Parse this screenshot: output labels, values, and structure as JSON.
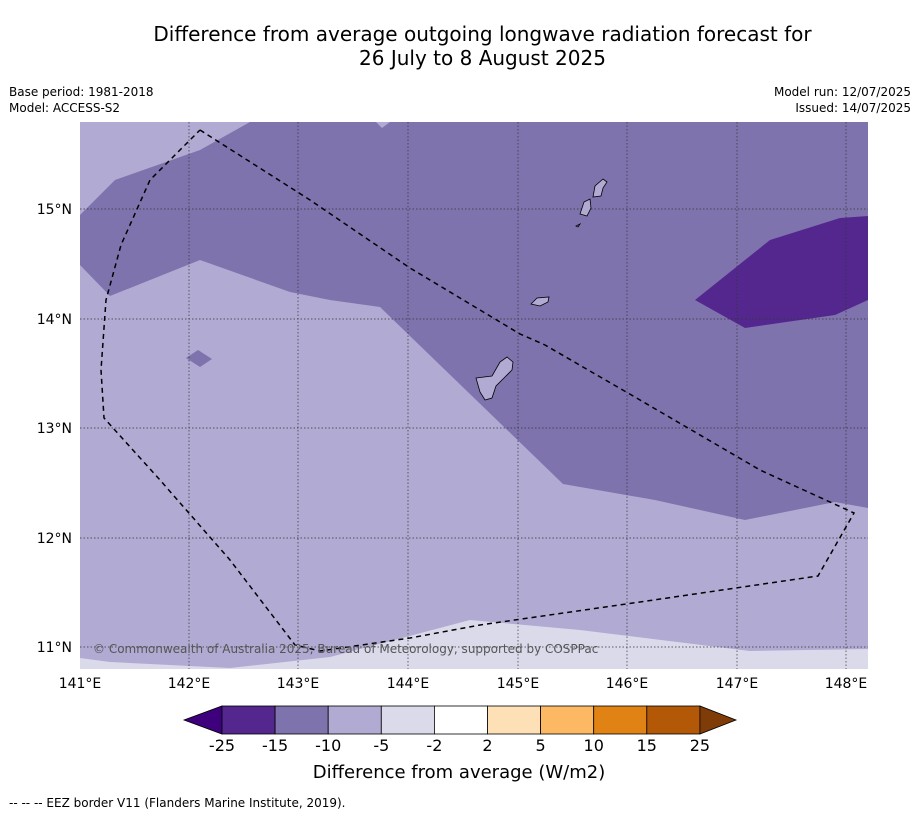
{
  "title_line1": "Difference from average outgoing longwave radiation forecast for",
  "title_line2": "26 July to 8 August 2025",
  "base_period": "Base period: 1981-2018",
  "model": "Model: ACCESS-S2",
  "model_run": "Model run: 12/07/2025",
  "issued": "Issued: 14/07/2025",
  "copyright": "© Commonwealth of Australia 2025, Bureau of Meteorology, supported by COSPPac",
  "lat_labels": [
    "15°N",
    "14°N",
    "13°N",
    "12°N",
    "11°N"
  ],
  "lon_labels": [
    "141°E",
    "142°E",
    "143°E",
    "144°E",
    "145°E",
    "146°E",
    "147°E",
    "148°E"
  ],
  "colorbar": {
    "title": "Difference from average (W/m2)",
    "ticks": [
      "-25",
      "-15",
      "-10",
      "-5",
      "-2",
      "2",
      "5",
      "10",
      "15",
      "25"
    ],
    "colors": [
      "#3f007d",
      "#54278f",
      "#7f73ad",
      "#b1aad2",
      "#dadaeb",
      "#ffffff",
      "#fee0b6",
      "#fdb863",
      "#e08214",
      "#b35806",
      "#7f3b08"
    ]
  },
  "footer": "--  --  -- EEZ border V11 (Flanders Marine Institute, 2019)."
}
